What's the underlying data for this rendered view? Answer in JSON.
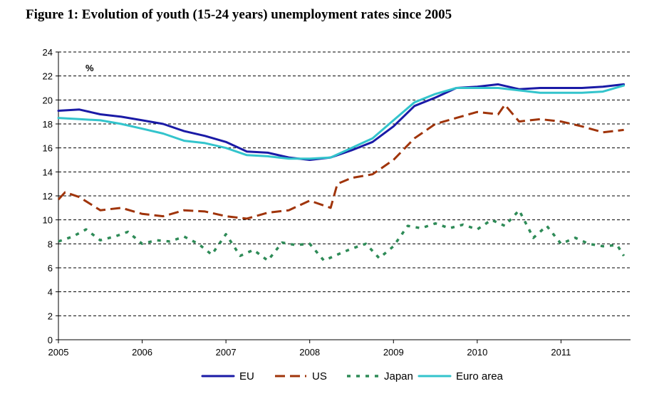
{
  "title": "Figure 1: Evolution of youth (15-24 years) unemployment rates since 2005",
  "chart_data": {
    "type": "line",
    "title": "Figure 1: Evolution of youth (15-24 years) unemployment rates since 2005",
    "ylabel": "%",
    "xlabel": "",
    "xlim": [
      2005,
      2011.83
    ],
    "ylim": [
      0,
      24
    ],
    "yticks": [
      0,
      2,
      4,
      6,
      8,
      10,
      12,
      14,
      16,
      18,
      20,
      22,
      24
    ],
    "xticks": [
      "2005",
      "2006",
      "2007",
      "2008",
      "2009",
      "2010",
      "2011"
    ],
    "grid": "horizontal dashed",
    "legend": "bottom",
    "series": [
      {
        "name": "EU",
        "color": "#1a1aa6",
        "style": "solid",
        "x": [
          2005.0,
          2005.25,
          2005.5,
          2005.75,
          2006.0,
          2006.25,
          2006.5,
          2006.75,
          2007.0,
          2007.25,
          2007.5,
          2007.75,
          2008.0,
          2008.25,
          2008.5,
          2008.75,
          2009.0,
          2009.25,
          2009.5,
          2009.75,
          2010.0,
          2010.25,
          2010.5,
          2010.75,
          2011.0,
          2011.25,
          2011.5,
          2011.75
        ],
        "values": [
          19.1,
          19.2,
          18.8,
          18.6,
          18.3,
          18.0,
          17.4,
          17.0,
          16.5,
          15.7,
          15.6,
          15.2,
          15.0,
          15.2,
          15.8,
          16.5,
          17.8,
          19.5,
          20.2,
          21.0,
          21.1,
          21.3,
          20.9,
          21.0,
          21.0,
          21.0,
          21.1,
          21.3
        ]
      },
      {
        "name": "US",
        "color": "#a0340a",
        "style": "dash",
        "x": [
          2005.0,
          2005.08,
          2005.25,
          2005.5,
          2005.75,
          2006.0,
          2006.25,
          2006.5,
          2006.75,
          2007.0,
          2007.25,
          2007.5,
          2007.75,
          2008.0,
          2008.25,
          2008.33,
          2008.5,
          2008.75,
          2009.0,
          2009.25,
          2009.5,
          2009.75,
          2010.0,
          2010.25,
          2010.33,
          2010.5,
          2010.75,
          2011.0,
          2011.25,
          2011.5,
          2011.75
        ],
        "values": [
          11.7,
          12.3,
          11.9,
          10.8,
          11.0,
          10.5,
          10.3,
          10.8,
          10.7,
          10.3,
          10.1,
          10.6,
          10.8,
          11.6,
          11.0,
          13.0,
          13.5,
          13.8,
          15.0,
          16.8,
          18.0,
          18.5,
          19.0,
          18.8,
          19.6,
          18.2,
          18.4,
          18.2,
          17.8,
          17.3,
          17.5
        ]
      },
      {
        "name": "Japan",
        "color": "#2e8b57",
        "style": "dot",
        "x": [
          2005.0,
          2005.17,
          2005.33,
          2005.5,
          2005.67,
          2005.83,
          2006.0,
          2006.17,
          2006.33,
          2006.5,
          2006.67,
          2006.83,
          2007.0,
          2007.17,
          2007.33,
          2007.5,
          2007.67,
          2007.83,
          2008.0,
          2008.17,
          2008.33,
          2008.5,
          2008.67,
          2008.83,
          2009.0,
          2009.17,
          2009.33,
          2009.5,
          2009.67,
          2009.83,
          2010.0,
          2010.17,
          2010.33,
          2010.5,
          2010.67,
          2010.83,
          2011.0,
          2011.17,
          2011.33,
          2011.5,
          2011.67,
          2011.75
        ],
        "values": [
          8.2,
          8.6,
          9.2,
          8.3,
          8.6,
          9.0,
          8.0,
          8.3,
          8.2,
          8.6,
          8.0,
          7.1,
          8.8,
          7.0,
          7.5,
          6.6,
          8.1,
          7.9,
          8.0,
          6.6,
          7.1,
          7.6,
          8.0,
          6.8,
          7.8,
          9.5,
          9.3,
          9.7,
          9.3,
          9.6,
          9.2,
          10.0,
          9.5,
          10.8,
          8.5,
          9.5,
          8.0,
          8.5,
          8.0,
          7.8,
          7.9,
          7.0
        ]
      },
      {
        "name": "Euro area",
        "color": "#33c4cc",
        "style": "solid",
        "x": [
          2005.0,
          2005.25,
          2005.5,
          2005.75,
          2006.0,
          2006.25,
          2006.5,
          2006.75,
          2007.0,
          2007.25,
          2007.5,
          2007.75,
          2008.0,
          2008.25,
          2008.5,
          2008.75,
          2009.0,
          2009.25,
          2009.5,
          2009.75,
          2010.0,
          2010.25,
          2010.5,
          2010.75,
          2011.0,
          2011.25,
          2011.5,
          2011.75
        ],
        "values": [
          18.5,
          18.4,
          18.3,
          18.0,
          17.6,
          17.2,
          16.6,
          16.4,
          16.0,
          15.4,
          15.3,
          15.1,
          15.1,
          15.2,
          16.0,
          16.8,
          18.3,
          19.8,
          20.5,
          21.0,
          21.0,
          21.0,
          20.8,
          20.6,
          20.6,
          20.6,
          20.7,
          21.2
        ]
      }
    ]
  }
}
